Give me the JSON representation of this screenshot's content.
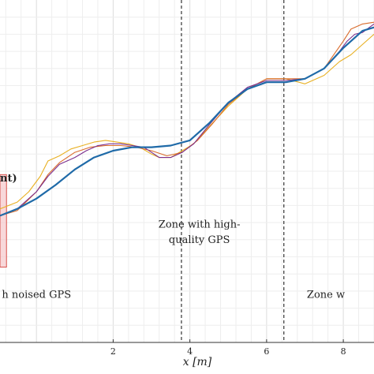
{
  "chart_data": {
    "type": "line",
    "xlabel": "x [m]",
    "xlim": [
      -0.95,
      8.8
    ],
    "ylim": [
      0,
      1
    ],
    "grid": true,
    "x_ticks": [
      2,
      4,
      6,
      8
    ],
    "zone_boundaries": [
      3.78,
      6.45
    ],
    "annotations": [
      {
        "text": "h noised GPS",
        "x": -0.9,
        "y": 0.13
      },
      {
        "text": "Zone with high-",
        "x": 4.0,
        "y": 0.335
      },
      {
        "text": "quality GPS",
        "x": 4.0,
        "y": 0.29
      },
      {
        "text": "Zone w",
        "x": 7.05,
        "y": 0.13
      },
      {
        "text": "nt)",
        "x": -0.95,
        "y": 0.47
      }
    ],
    "highlight_box": {
      "x0": -0.95,
      "x1": -0.78,
      "y0": 0.22,
      "y1": 0.49,
      "color": "#f5c7ca",
      "edge": "#d9534f"
    },
    "colors": {
      "reference": "#1f6aa8",
      "estimate_purple": "#7b2e8d",
      "estimate_yellow": "#e8b022",
      "estimate_orange": "#d96b2b",
      "dashed": "#333333"
    },
    "series": [
      {
        "color": "#1f6aa8",
        "x": [
          -0.95,
          -0.5,
          0,
          0.5,
          1,
          1.5,
          2,
          2.5,
          3,
          3.5,
          4,
          4.5,
          5,
          5.5,
          6,
          6.5,
          7,
          7.5,
          8,
          8.5,
          8.8
        ],
        "y": [
          0.37,
          0.39,
          0.42,
          0.46,
          0.505,
          0.54,
          0.56,
          0.57,
          0.57,
          0.575,
          0.59,
          0.64,
          0.7,
          0.74,
          0.76,
          0.76,
          0.77,
          0.8,
          0.86,
          0.91,
          0.92
        ]
      },
      {
        "color": "#7b2e8d",
        "x": [
          -0.95,
          -0.5,
          0,
          0.3,
          0.6,
          1,
          1.3,
          1.6,
          1.9,
          2.2,
          2.5,
          2.8,
          3.0,
          3.2,
          3.5,
          3.8,
          4.1,
          4.5,
          5,
          5.5,
          6,
          6.5,
          7,
          7.5,
          7.9,
          8.1,
          8.3,
          8.5,
          8.8
        ],
        "y": [
          0.37,
          0.39,
          0.44,
          0.485,
          0.52,
          0.54,
          0.56,
          0.575,
          0.58,
          0.58,
          0.575,
          0.57,
          0.555,
          0.54,
          0.54,
          0.555,
          0.58,
          0.635,
          0.7,
          0.745,
          0.765,
          0.765,
          0.77,
          0.8,
          0.85,
          0.88,
          0.9,
          0.905,
          0.93
        ]
      },
      {
        "color": "#e8b022",
        "x": [
          -0.95,
          -0.5,
          -0.2,
          0.1,
          0.3,
          0.6,
          0.9,
          1.2,
          1.5,
          1.8,
          2.1,
          2.4,
          2.7,
          3.0,
          3.2,
          3.5,
          3.8,
          4.1,
          4.5,
          5,
          5.5,
          6,
          6.5,
          7,
          7.5,
          7.9,
          8.2,
          8.5,
          8.8
        ],
        "y": [
          0.39,
          0.41,
          0.44,
          0.485,
          0.53,
          0.545,
          0.565,
          0.575,
          0.585,
          0.59,
          0.585,
          0.58,
          0.57,
          0.55,
          0.54,
          0.54,
          0.56,
          0.58,
          0.63,
          0.69,
          0.74,
          0.77,
          0.77,
          0.755,
          0.78,
          0.82,
          0.84,
          0.87,
          0.9
        ]
      },
      {
        "color": "#d96b2b",
        "x": [
          -0.95,
          -0.5,
          0,
          0.3,
          0.6,
          1,
          1.4,
          1.8,
          2.2,
          2.6,
          3.0,
          3.4,
          3.8,
          4.2,
          4.6,
          5,
          5.5,
          6,
          6.5,
          7,
          7.5,
          8,
          8.2,
          8.5,
          8.8
        ],
        "y": [
          0.37,
          0.385,
          0.44,
          0.49,
          0.525,
          0.555,
          0.57,
          0.575,
          0.575,
          0.57,
          0.56,
          0.545,
          0.555,
          0.59,
          0.64,
          0.695,
          0.74,
          0.77,
          0.77,
          0.77,
          0.8,
          0.88,
          0.915,
          0.93,
          0.935
        ]
      }
    ]
  }
}
